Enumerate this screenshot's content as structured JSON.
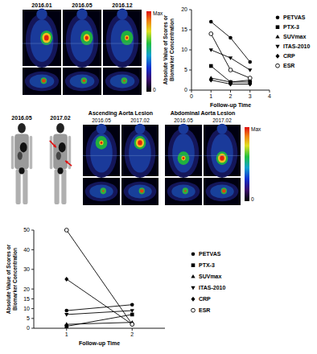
{
  "chart_data": [
    {
      "type": "line",
      "x_label": "Follow-up Time",
      "y_label": "Absolute Value of Scores or Biomarker Concentration",
      "x": [
        1,
        2,
        3
      ],
      "xlim": [
        0,
        4
      ],
      "xticks": [
        0,
        1,
        2,
        3,
        4
      ],
      "ylim": [
        0,
        20
      ],
      "yticks": [
        0,
        5,
        10,
        15,
        20
      ],
      "grid": false,
      "legend": "right",
      "series": [
        {
          "name": "PETVAS",
          "color": "#000000",
          "marker": "circle",
          "values": [
            17,
            13,
            7
          ]
        },
        {
          "name": "PTX-3",
          "color": "#000000",
          "marker": "square",
          "values": [
            6,
            2,
            2
          ]
        },
        {
          "name": "SUVmax",
          "color": "#000000",
          "marker": "triangle",
          "values": [
            3,
            2,
            2.5
          ]
        },
        {
          "name": "ITAS-2010",
          "color": "#000000",
          "marker": "triangle-down",
          "values": [
            10,
            8,
            5
          ]
        },
        {
          "name": "CRP",
          "color": "#000000",
          "marker": "diamond",
          "values": [
            2.5,
            1.5,
            1.5
          ]
        },
        {
          "name": "ESR",
          "color": "#000000",
          "marker": "circle-open",
          "values": [
            14,
            5,
            3
          ]
        }
      ]
    },
    {
      "type": "line",
      "x_label": "Follow-up Time",
      "y_label": "Absolute Value of Scores or Biomarker Concentration",
      "x": [
        1,
        2
      ],
      "xlim": [
        0.5,
        2.5
      ],
      "xticks": [
        1,
        2
      ],
      "ylim": [
        0,
        50
      ],
      "yticks": [
        0,
        5,
        10,
        15,
        20,
        30,
        40,
        50
      ],
      "grid": false,
      "legend": "right",
      "series": [
        {
          "name": "PETVAS",
          "color": "#000000",
          "marker": "circle",
          "values": [
            9,
            12
          ]
        },
        {
          "name": "PTX-3",
          "color": "#000000",
          "marker": "square",
          "values": [
            1,
            7
          ]
        },
        {
          "name": "SUVmax",
          "color": "#000000",
          "marker": "triangle",
          "values": [
            2,
            3
          ]
        },
        {
          "name": "ITAS-2010",
          "color": "#000000",
          "marker": "triangle-down",
          "values": [
            7,
            9
          ]
        },
        {
          "name": "CRP",
          "color": "#000000",
          "marker": "diamond",
          "values": [
            25,
            2
          ]
        },
        {
          "name": "ESR",
          "color": "#000000",
          "marker": "circle-open",
          "values": [
            50,
            2
          ]
        }
      ]
    }
  ],
  "image_panels": {
    "row1": {
      "dates": [
        "2016.01",
        "2016.05",
        "2016.12"
      ],
      "colorbar": {
        "max_label": "Max",
        "min_label": "0"
      }
    },
    "row2": {
      "mip_dates": [
        "2016.05",
        "2017.02"
      ],
      "lesions": [
        {
          "title": "Ascending Aorta Lesion",
          "dates": [
            "2016.05",
            "2017.02"
          ]
        },
        {
          "title": "Abdominal Aorta Lesion",
          "dates": [
            "2016.05",
            "2017.02"
          ]
        }
      ],
      "colorbar": {
        "max_label": "Max",
        "min_label": "0"
      }
    }
  }
}
